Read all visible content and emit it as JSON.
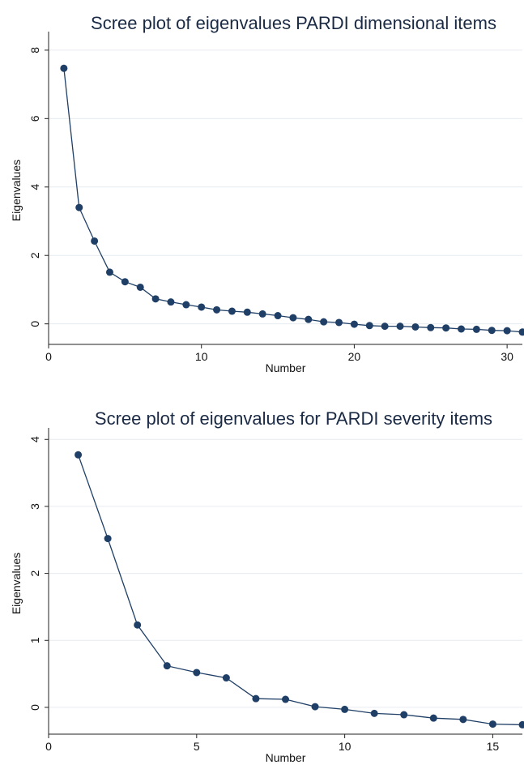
{
  "chart_data": [
    {
      "type": "line",
      "title": "Scree plot of eigenvalues PARDI dimensional items",
      "xlabel": "Number",
      "ylabel": "Eigenvalues",
      "xlim": [
        0,
        31
      ],
      "ylim": [
        -0.6,
        8.4
      ],
      "xticks": [
        0,
        10,
        20,
        30
      ],
      "yticks": [
        0,
        2,
        4,
        6,
        8
      ],
      "grid": true,
      "color": "#1f3f66",
      "series": [
        {
          "x": [
            1,
            2,
            3,
            4,
            5,
            6,
            7,
            8,
            9,
            10,
            11,
            12,
            13,
            14,
            15,
            16,
            17,
            18,
            19,
            20,
            21,
            22,
            23,
            24,
            25,
            26,
            27,
            28,
            29,
            30,
            31
          ],
          "values": [
            7.47,
            3.4,
            2.42,
            1.51,
            1.23,
            1.07,
            0.73,
            0.64,
            0.56,
            0.49,
            0.41,
            0.37,
            0.34,
            0.29,
            0.24,
            0.18,
            0.13,
            0.06,
            0.04,
            -0.01,
            -0.05,
            -0.07,
            -0.07,
            -0.09,
            -0.11,
            -0.12,
            -0.15,
            -0.16,
            -0.19,
            -0.2,
            -0.24
          ]
        }
      ]
    },
    {
      "type": "line",
      "title": "Scree plot of eigenvalues for PARDI severity items",
      "xlabel": "Number",
      "ylabel": "Eigenvalues",
      "xlim": [
        0,
        16
      ],
      "ylim": [
        -0.4,
        4.1
      ],
      "xticks": [
        0,
        5,
        10,
        15
      ],
      "yticks": [
        0,
        1,
        2,
        3,
        4
      ],
      "grid": true,
      "color": "#1f3f66",
      "series": [
        {
          "x": [
            1,
            2,
            3,
            4,
            5,
            6,
            7,
            8,
            9,
            10,
            11,
            12,
            13,
            14,
            15,
            16
          ],
          "values": [
            3.77,
            2.52,
            1.23,
            0.62,
            0.52,
            0.44,
            0.13,
            0.12,
            0.01,
            -0.03,
            -0.09,
            -0.11,
            -0.16,
            -0.18,
            -0.25,
            -0.26
          ]
        }
      ]
    }
  ]
}
